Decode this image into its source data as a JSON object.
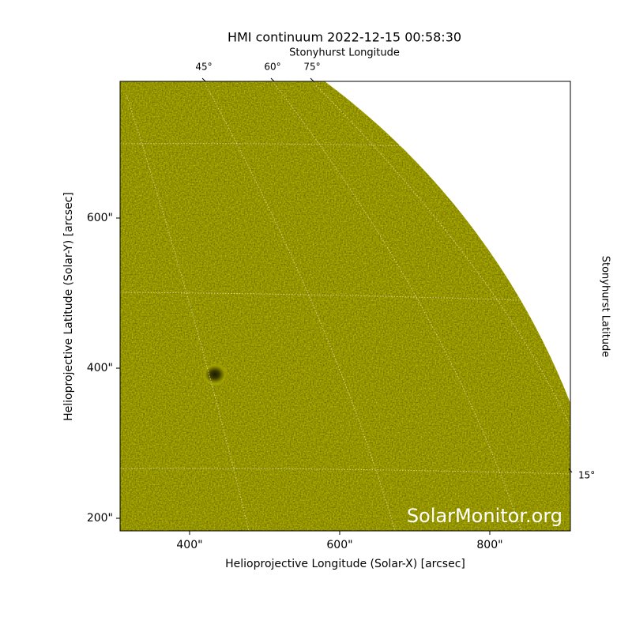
{
  "chart_data": {
    "type": "image",
    "title": "HMI continuum 2022-12-15 00:58:30",
    "xlabel": "Helioprojective Longitude (Solar-X) [arcsec]",
    "ylabel": "Helioprojective Latitude (Solar-Y) [arcsec]",
    "top_label": "Stonyhurst Longitude",
    "right_label": "Stonyhurst Latitude",
    "watermark": "SolarMonitor.org",
    "color": "#cccc00",
    "xlim": [
      307.4,
      907.4
    ],
    "ylim": [
      183.2,
      782.1
    ],
    "xticks": [
      {
        "value": 400,
        "label": "400\""
      },
      {
        "value": 600,
        "label": "600\""
      },
      {
        "value": 800,
        "label": "800\""
      }
    ],
    "yticks": [
      {
        "value": 200,
        "label": "200\""
      },
      {
        "value": 400,
        "label": "400\""
      },
      {
        "value": 600,
        "label": "600\""
      }
    ],
    "lon_ticks": [
      {
        "value": 45,
        "label": "45°"
      },
      {
        "value": 60,
        "label": "60°"
      },
      {
        "value": 75,
        "label": "75°"
      }
    ],
    "lat_ticks": [
      {
        "value": 15,
        "label": "15°"
      }
    ]
  }
}
